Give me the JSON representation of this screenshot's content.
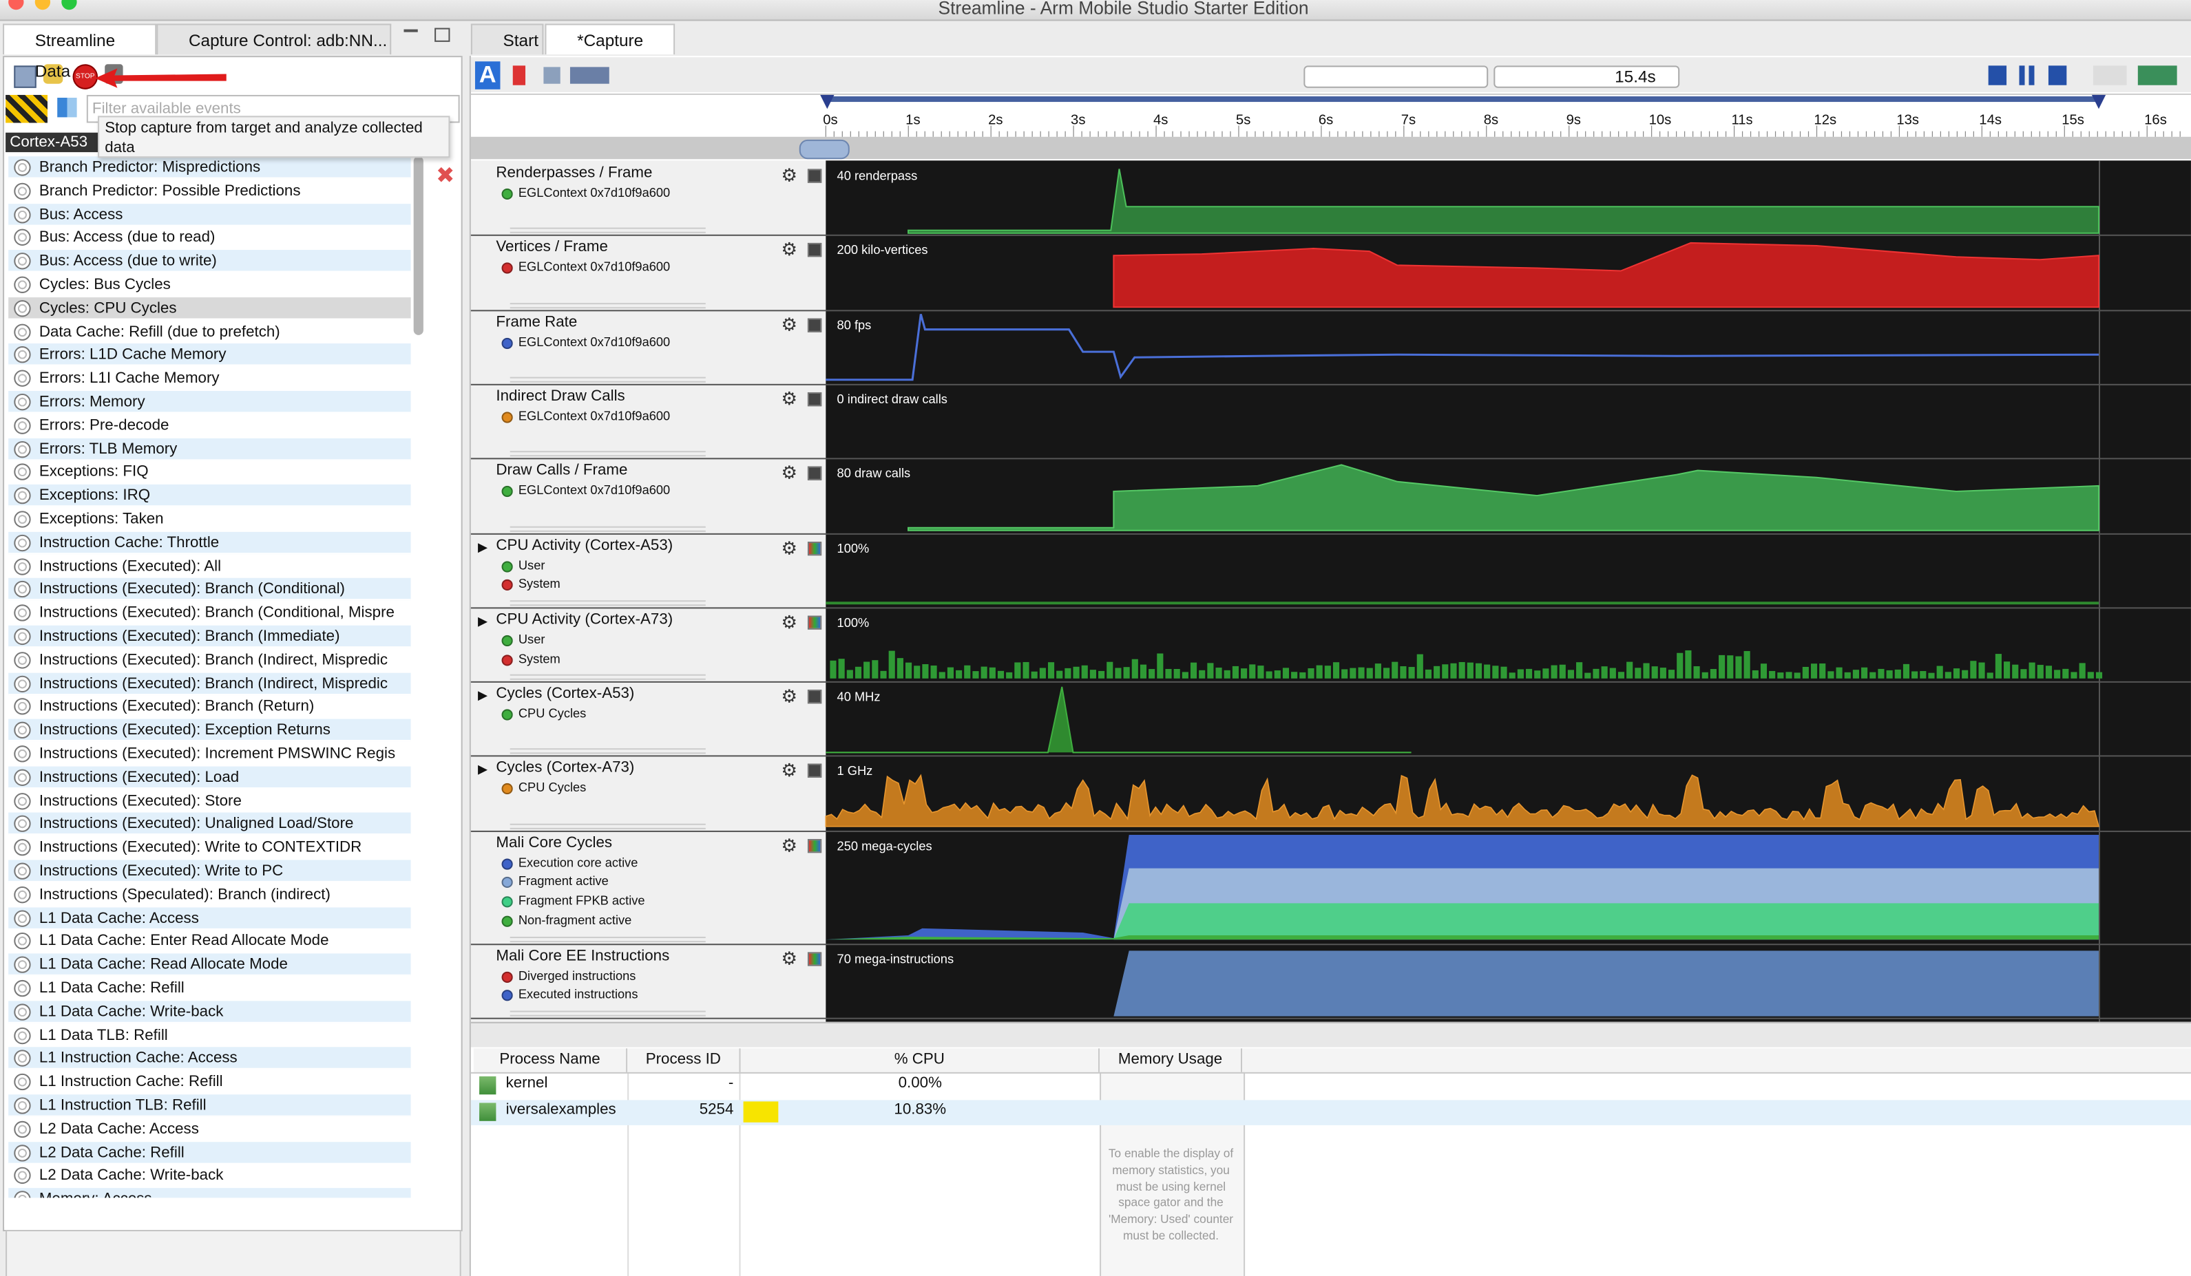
{
  "window": {
    "title": "Streamline - Arm Mobile Studio Starter Edition"
  },
  "left_panel": {
    "tabs": [
      "Streamline Data",
      "Capture Control: adb:NN..."
    ],
    "filter_placeholder": "Filter available events",
    "tooltip": "Stop capture from target and analyze collected data",
    "cpu_label": "Cortex-A53",
    "events": [
      "Branch Predictor: Mispredictions",
      "Branch Predictor: Possible Predictions",
      "Bus: Access",
      "Bus: Access (due to read)",
      "Bus: Access (due to write)",
      "Cycles: Bus Cycles",
      "Cycles: CPU Cycles",
      "Data Cache: Refill (due to prefetch)",
      "Errors: L1D Cache Memory",
      "Errors: L1I Cache Memory",
      "Errors: Memory",
      "Errors: Pre-decode",
      "Errors: TLB Memory",
      "Exceptions: FIQ",
      "Exceptions: IRQ",
      "Exceptions: Taken",
      "Instruction Cache: Throttle",
      "Instructions (Executed): All",
      "Instructions (Executed): Branch (Conditional)",
      "Instructions (Executed): Branch (Conditional, Mispre",
      "Instructions (Executed): Branch (Immediate)",
      "Instructions (Executed): Branch (Indirect, Mispredic",
      "Instructions (Executed): Branch (Indirect, Mispredic",
      "Instructions (Executed): Branch (Return)",
      "Instructions (Executed): Exception Returns",
      "Instructions (Executed): Increment PMSWINC Regis",
      "Instructions (Executed): Load",
      "Instructions (Executed): Store",
      "Instructions (Executed): Unaligned Load/Store",
      "Instructions (Executed): Write to CONTEXTIDR",
      "Instructions (Executed): Write to PC",
      "Instructions (Speculated): Branch (indirect)",
      "L1 Data Cache: Access",
      "L1 Data Cache: Enter Read Allocate Mode",
      "L1 Data Cache: Read Allocate Mode",
      "L1 Data Cache: Refill",
      "L1 Data Cache: Write-back",
      "L1 Data TLB: Refill",
      "L1 Instruction Cache: Access",
      "L1 Instruction Cache: Refill",
      "L1 Instruction TLB: Refill",
      "L2 Data Cache: Access",
      "L2 Data Cache: Refill",
      "L2 Data Cache: Write-back",
      "Memory: Access"
    ],
    "selected_event": 6
  },
  "capture": {
    "tabs": [
      "Start",
      "*Capture"
    ],
    "duration": "15.4s",
    "time_ticks": [
      "0s",
      "1s",
      "2s",
      "3s",
      "4s",
      "5s",
      "6s",
      "7s",
      "8s",
      "9s",
      "10s",
      "11s",
      "12s",
      "13s",
      "14s",
      "15s",
      "16s"
    ],
    "charts": [
      {
        "title": "Renderpasses / Frame",
        "scale": "40 renderpass",
        "series": [
          {
            "name": "EGLContext 0x7d10f9a600",
            "color": "#3fae3f"
          }
        ]
      },
      {
        "title": "Vertices / Frame",
        "scale": "200 kilo-vertices",
        "series": [
          {
            "name": "EGLContext 0x7d10f9a600",
            "color": "#d32f2f"
          }
        ]
      },
      {
        "title": "Frame Rate",
        "scale": "80 fps",
        "series": [
          {
            "name": "EGLContext 0x7d10f9a600",
            "color": "#3f63c8"
          }
        ]
      },
      {
        "title": "Indirect Draw Calls",
        "scale": "0 indirect draw calls",
        "series": [
          {
            "name": "EGLContext 0x7d10f9a600",
            "color": "#e08a1e"
          }
        ]
      },
      {
        "title": "Draw Calls / Frame",
        "scale": "80 draw calls",
        "series": [
          {
            "name": "EGLContext 0x7d10f9a600",
            "color": "#3fae3f"
          }
        ]
      },
      {
        "title": "CPU Activity (Cortex-A53)",
        "scale": "100%",
        "expandable": true,
        "series": [
          {
            "name": "User",
            "color": "#3fae3f"
          },
          {
            "name": "System",
            "color": "#d32f2f"
          }
        ]
      },
      {
        "title": "CPU Activity (Cortex-A73)",
        "scale": "100%",
        "expandable": true,
        "series": [
          {
            "name": "User",
            "color": "#3fae3f"
          },
          {
            "name": "System",
            "color": "#d32f2f"
          }
        ]
      },
      {
        "title": "Cycles (Cortex-A53)",
        "scale": "40 MHz",
        "expandable": true,
        "series": [
          {
            "name": "CPU Cycles",
            "color": "#3fae3f"
          }
        ]
      },
      {
        "title": "Cycles (Cortex-A73)",
        "scale": "1 GHz",
        "expandable": true,
        "series": [
          {
            "name": "CPU Cycles",
            "color": "#e08a1e"
          }
        ]
      },
      {
        "title": "Mali Core Cycles",
        "scale": "250 mega-cycles",
        "series": [
          {
            "name": "Execution core active",
            "color": "#3f63c8"
          },
          {
            "name": "Fragment active",
            "color": "#86a8d8"
          },
          {
            "name": "Fragment FPKB active",
            "color": "#3fcf86"
          },
          {
            "name": "Non-fragment active",
            "color": "#3fae3f"
          }
        ]
      },
      {
        "title": "Mali Core EE Instructions",
        "scale": "70 mega-instructions",
        "series": [
          {
            "name": "Diverged instructions",
            "color": "#d32f2f"
          },
          {
            "name": "Executed instructions",
            "color": "#3f63c8"
          }
        ]
      }
    ]
  },
  "process_table": {
    "headers": [
      "Process Name",
      "Process ID",
      "% CPU",
      "Memory Usage"
    ],
    "rows": [
      [
        "kernel",
        "-",
        "0.00%"
      ],
      [
        "iversalexamples",
        "5254",
        "10.83%"
      ]
    ],
    "memory_note": "To enable the display of memory statistics, you must be using kernel space gator and the 'Memory: Used' counter must be collected."
  }
}
